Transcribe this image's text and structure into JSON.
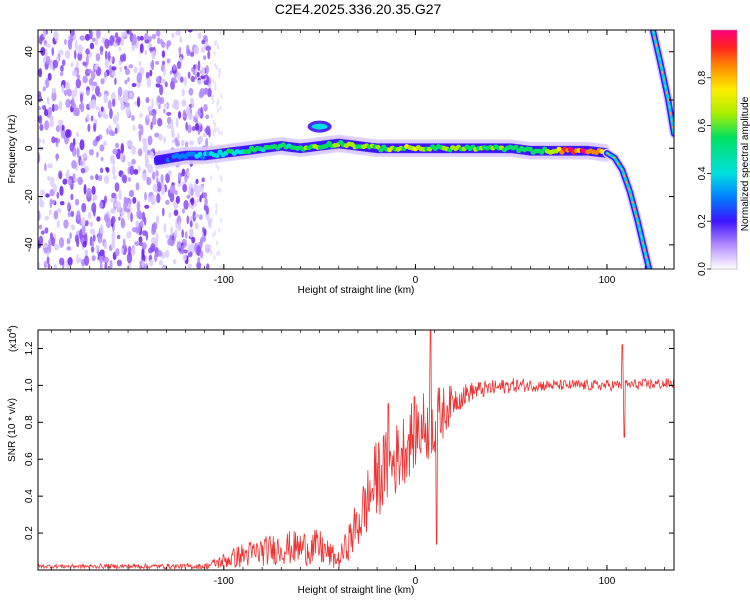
{
  "title": "C2E4.2025.336.20.35.G27",
  "colors": {
    "snr_line": "#ee3333",
    "frame": "#000000",
    "scatter_base": "#7a3cf0"
  },
  "chart_data": [
    {
      "type": "heatmap",
      "xlabel": "Height of straight line (km)",
      "ylabel": "Frequency (Hz)",
      "xlim": [
        -197,
        135
      ],
      "ylim": [
        -50,
        49
      ],
      "xticks": [
        {
          "v": -100,
          "label": "-100"
        },
        {
          "v": 0,
          "label": "0"
        },
        {
          "v": 100,
          "label": "100"
        }
      ],
      "yticks": [
        {
          "v": 40,
          "label": "40"
        },
        {
          "v": 20,
          "label": "20"
        },
        {
          "v": 0,
          "label": "0"
        },
        {
          "v": -20,
          "label": "-20"
        },
        {
          "v": -40,
          "label": "-40"
        }
      ],
      "colorbar": {
        "label": "Normalized spectral amplitude",
        "range": [
          0,
          1
        ],
        "ticks": [
          {
            "v": 0.0,
            "label": "0.0"
          },
          {
            "v": 0.2,
            "label": "0.2"
          },
          {
            "v": 0.4,
            "label": "0.4"
          },
          {
            "v": 0.6,
            "label": "0.6"
          },
          {
            "v": 0.8,
            "label": "0.8"
          }
        ]
      },
      "noise_region_x": [
        -197,
        -107
      ],
      "main_trace": [
        {
          "x": -135,
          "y": -5,
          "a": 0.2
        },
        {
          "x": -120,
          "y": -3,
          "a": 0.3
        },
        {
          "x": -110,
          "y": -3,
          "a": 0.35
        },
        {
          "x": -100,
          "y": -2,
          "a": 0.4
        },
        {
          "x": -90,
          "y": -1,
          "a": 0.45
        },
        {
          "x": -80,
          "y": 0,
          "a": 0.5
        },
        {
          "x": -70,
          "y": 1,
          "a": 0.5
        },
        {
          "x": -60,
          "y": 0,
          "a": 0.55
        },
        {
          "x": -50,
          "y": 1,
          "a": 0.55
        },
        {
          "x": -40,
          "y": 2,
          "a": 0.6
        },
        {
          "x": -30,
          "y": 1,
          "a": 0.6
        },
        {
          "x": -20,
          "y": 0,
          "a": 0.6
        },
        {
          "x": -10,
          "y": 0,
          "a": 0.65
        },
        {
          "x": 0,
          "y": 0,
          "a": 0.75
        },
        {
          "x": 10,
          "y": 0,
          "a": 0.6
        },
        {
          "x": 20,
          "y": 0,
          "a": 0.6
        },
        {
          "x": 30,
          "y": 0,
          "a": 0.6
        },
        {
          "x": 40,
          "y": 0,
          "a": 0.55
        },
        {
          "x": 50,
          "y": 0,
          "a": 0.55
        },
        {
          "x": 60,
          "y": -1,
          "a": 0.5
        },
        {
          "x": 70,
          "y": -1,
          "a": 0.55
        },
        {
          "x": 80,
          "y": -1,
          "a": 0.95
        },
        {
          "x": 90,
          "y": -1,
          "a": 1.0
        },
        {
          "x": 100,
          "y": -2,
          "a": 0.7
        }
      ],
      "falling_trace": [
        {
          "x": 100,
          "y": -2
        },
        {
          "x": 104,
          "y": -4
        },
        {
          "x": 108,
          "y": -9
        },
        {
          "x": 112,
          "y": -18
        },
        {
          "x": 116,
          "y": -30
        },
        {
          "x": 119,
          "y": -40
        },
        {
          "x": 122,
          "y": -50
        }
      ],
      "upper_trace": [
        {
          "x": 124,
          "y": 49
        },
        {
          "x": 128,
          "y": 35
        },
        {
          "x": 132,
          "y": 20
        },
        {
          "x": 135,
          "y": 6
        }
      ],
      "side_blob": {
        "x": -50,
        "y": 9
      }
    },
    {
      "type": "line",
      "xlabel": "Height of straight line (km)",
      "ylabel": "SNR (10 * v/v)",
      "y_multiplier": "(x10",
      "y_exponent": "4",
      "y_multiplier_close": ")",
      "xlim": [
        -197,
        135
      ],
      "ylim": [
        0,
        1.3
      ],
      "xticks": [
        {
          "v": -100,
          "label": "-100"
        },
        {
          "v": 0,
          "label": "0"
        },
        {
          "v": 100,
          "label": "100"
        }
      ],
      "yticks": [
        {
          "v": 0.2,
          "label": "0.2"
        },
        {
          "v": 0.4,
          "label": "0.4"
        },
        {
          "v": 0.6,
          "label": "0.6"
        },
        {
          "v": 0.8,
          "label": "0.8"
        },
        {
          "v": 1.0,
          "label": "1.0"
        },
        {
          "v": 1.2,
          "label": "1.2"
        }
      ],
      "envelope": [
        {
          "x": -197,
          "y": 0.02,
          "n": 0.01
        },
        {
          "x": -110,
          "y": 0.02,
          "n": 0.015
        },
        {
          "x": -90,
          "y": 0.08,
          "n": 0.07
        },
        {
          "x": -70,
          "y": 0.12,
          "n": 0.09
        },
        {
          "x": -50,
          "y": 0.12,
          "n": 0.1
        },
        {
          "x": -40,
          "y": 0.05,
          "n": 0.05
        },
        {
          "x": -30,
          "y": 0.25,
          "n": 0.15
        },
        {
          "x": -20,
          "y": 0.5,
          "n": 0.22
        },
        {
          "x": -10,
          "y": 0.6,
          "n": 0.2
        },
        {
          "x": 0,
          "y": 0.75,
          "n": 0.2
        },
        {
          "x": 10,
          "y": 0.8,
          "n": 0.2
        },
        {
          "x": 20,
          "y": 0.92,
          "n": 0.08
        },
        {
          "x": 30,
          "y": 0.97,
          "n": 0.05
        },
        {
          "x": 50,
          "y": 1.0,
          "n": 0.04
        },
        {
          "x": 70,
          "y": 1.0,
          "n": 0.03
        },
        {
          "x": 100,
          "y": 1.0,
          "n": 0.03
        },
        {
          "x": 135,
          "y": 1.01,
          "n": 0.03
        }
      ],
      "spikes": [
        {
          "x": -14,
          "y": 0.9
        },
        {
          "x": 8,
          "y": 1.32
        },
        {
          "x": 11,
          "y": 0.14
        },
        {
          "x": 108,
          "y": 1.22
        },
        {
          "x": 109,
          "y": 0.72
        }
      ]
    }
  ]
}
